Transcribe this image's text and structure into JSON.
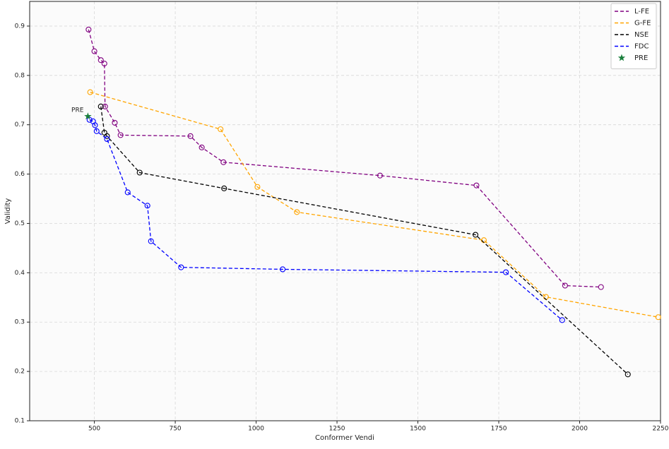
{
  "chart_data": {
    "type": "line",
    "xlabel": "Conformer Vendi",
    "ylabel": "Validity",
    "xlim": [
      300,
      2250
    ],
    "xticks": [
      500,
      750,
      1000,
      1250,
      1500,
      1750,
      2000,
      2250
    ],
    "ylim": [
      0.1,
      0.95
    ],
    "yticks": [
      0.1,
      0.2,
      0.3,
      0.4,
      0.5,
      0.6,
      0.7,
      0.8,
      0.9
    ],
    "grid": true,
    "legend": "upper right",
    "series": [
      {
        "name": "L-FE",
        "color": "#800080",
        "marker": "o",
        "linestyle": "dashed",
        "x": [
          482,
          500,
          520,
          531,
          533,
          563,
          581,
          797,
          832,
          899,
          1383,
          1681,
          1955,
          2066
        ],
        "values": [
          0.893,
          0.849,
          0.831,
          0.824,
          0.737,
          0.704,
          0.679,
          0.677,
          0.654,
          0.624,
          0.597,
          0.577,
          0.374,
          0.371
        ]
      },
      {
        "name": "G-FE",
        "color": "#ffa500",
        "marker": "o",
        "linestyle": "dashed",
        "x": [
          487,
          890,
          1004,
          1126,
          1704,
          1896,
          2243
        ],
        "values": [
          0.766,
          0.691,
          0.574,
          0.523,
          0.466,
          0.351,
          0.31
        ]
      },
      {
        "name": "NSE",
        "color": "#000000",
        "marker": "o",
        "linestyle": "dashed",
        "x": [
          520,
          531,
          539,
          640,
          901,
          1678,
          2149
        ],
        "values": [
          0.737,
          0.684,
          0.677,
          0.603,
          0.571,
          0.477,
          0.194
        ]
      },
      {
        "name": "FDC",
        "color": "#0000ff",
        "marker": "o",
        "linestyle": "dashed",
        "x": [
          485,
          496,
          502,
          507,
          539,
          603,
          664,
          675,
          768,
          1082,
          1772,
          1946
        ],
        "values": [
          0.71,
          0.707,
          0.699,
          0.687,
          0.671,
          0.563,
          0.536,
          0.464,
          0.411,
          0.407,
          0.401,
          0.304
        ]
      },
      {
        "name": "PRE",
        "color": "#1a7f3c",
        "marker": "star",
        "linestyle": "none",
        "x": [
          480
        ],
        "values": [
          0.717
        ]
      }
    ],
    "annotations": [
      "PRE"
    ]
  }
}
